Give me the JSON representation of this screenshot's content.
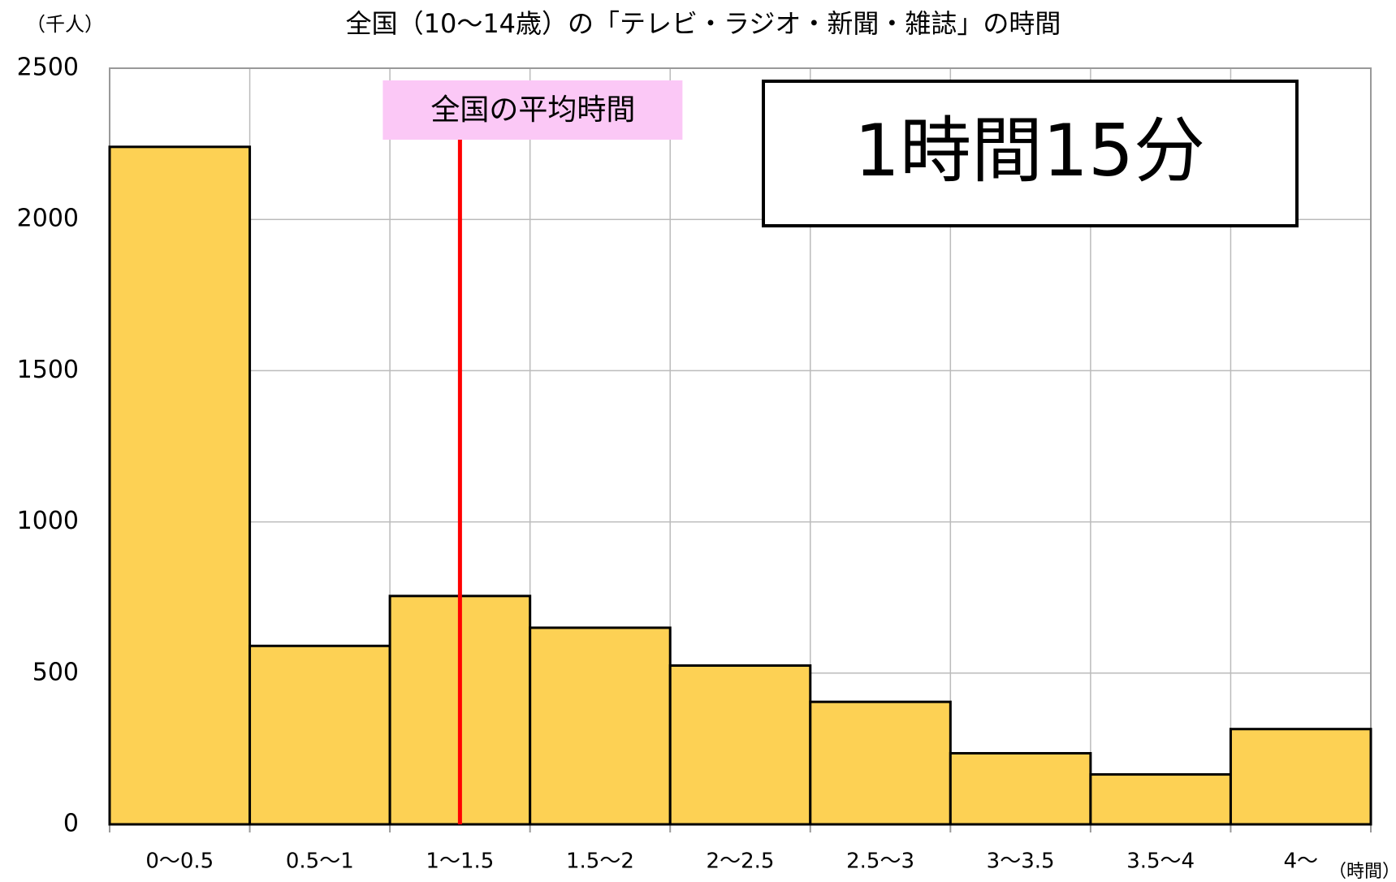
{
  "chart_data": {
    "type": "bar",
    "title": "全国（10～14歳）の「テレビ・ラジオ・新聞・雑誌」の時間",
    "y_unit": "（千人）",
    "x_unit": "（時間）",
    "categories": [
      "0～0.5",
      "0.5～1",
      "1～1.5",
      "1.5～2",
      "2～2.5",
      "2.5～3",
      "3～3.5",
      "3.5～4",
      "4～"
    ],
    "values": [
      2240,
      590,
      755,
      650,
      525,
      405,
      235,
      165,
      315
    ],
    "color": "#fdd154",
    "ylim": [
      0,
      2500
    ],
    "yticks": [
      0,
      500,
      1000,
      1500,
      2000,
      2500
    ],
    "grid": true,
    "xlim": [
      0,
      4.5
    ],
    "mean": {
      "label": "全国の平均時間",
      "text": "1時間15分",
      "value": 1.25,
      "color": "#ff0000",
      "label_color": "#fbc8f6"
    }
  }
}
